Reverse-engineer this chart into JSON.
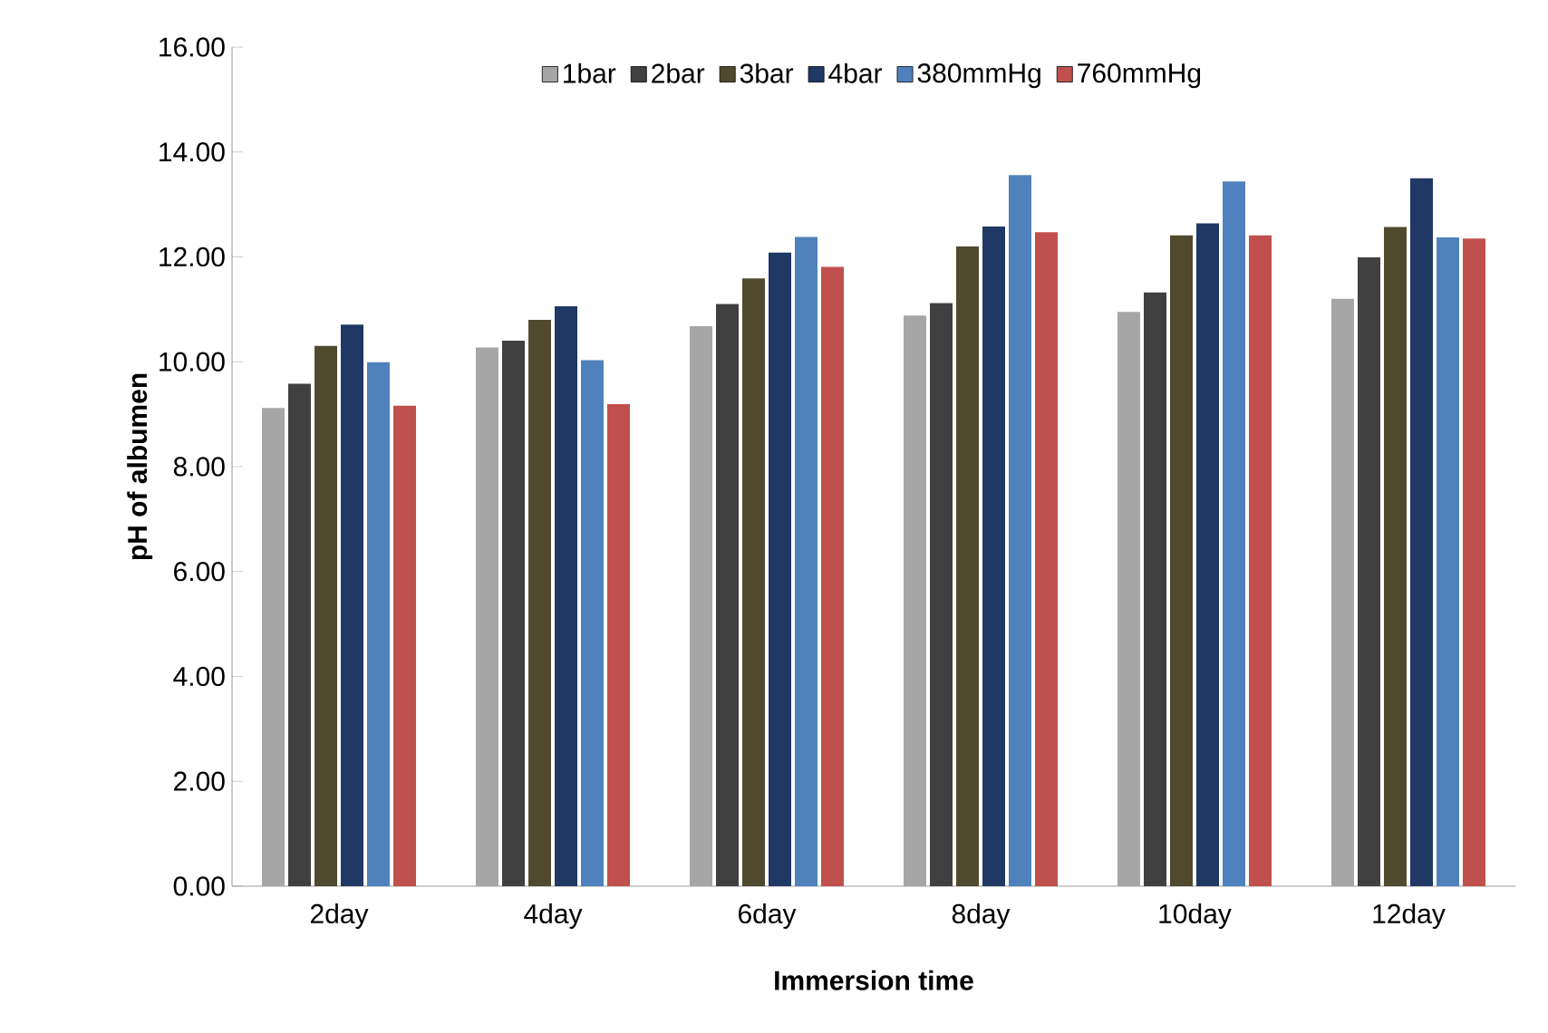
{
  "chart_data": {
    "type": "bar",
    "xlabel": "Immersion time",
    "ylabel": "pH of  albumen",
    "categories": [
      "2day",
      "4day",
      "6day",
      "8day",
      "10day",
      "12day"
    ],
    "series": [
      {
        "name": "1bar",
        "color": "#a6a6a6",
        "values": [
          9.12,
          10.27,
          10.68,
          10.88,
          10.95,
          11.2
        ]
      },
      {
        "name": "2bar",
        "color": "#404040",
        "values": [
          9.58,
          10.4,
          11.1,
          11.12,
          11.32,
          11.99
        ]
      },
      {
        "name": "3bar",
        "color": "#4f4a2e",
        "values": [
          10.3,
          10.8,
          11.59,
          12.2,
          12.41,
          12.57
        ]
      },
      {
        "name": "4bar",
        "color": "#1f3864",
        "values": [
          10.71,
          11.06,
          12.08,
          12.58,
          12.64,
          13.5
        ]
      },
      {
        "name": "380mmHg",
        "color": "#4f81bd",
        "values": [
          9.99,
          10.03,
          12.38,
          13.56,
          13.44,
          12.37
        ]
      },
      {
        "name": "760mmHg",
        "color": "#c0504d",
        "values": [
          9.16,
          9.19,
          11.81,
          12.47,
          12.41,
          12.35
        ]
      }
    ],
    "ylim": [
      0,
      16
    ],
    "yticks": [
      {
        "value": 0,
        "label": "0.00"
      },
      {
        "value": 2,
        "label": "2.00"
      },
      {
        "value": 4,
        "label": "4.00"
      },
      {
        "value": 6,
        "label": "6.00"
      },
      {
        "value": 8,
        "label": "8.00"
      },
      {
        "value": 10,
        "label": "10.00"
      },
      {
        "value": 12,
        "label": "12.00"
      },
      {
        "value": 14,
        "label": "14.00"
      },
      {
        "value": 16,
        "label": "16.00"
      }
    ],
    "legend": "top",
    "grid": false
  }
}
